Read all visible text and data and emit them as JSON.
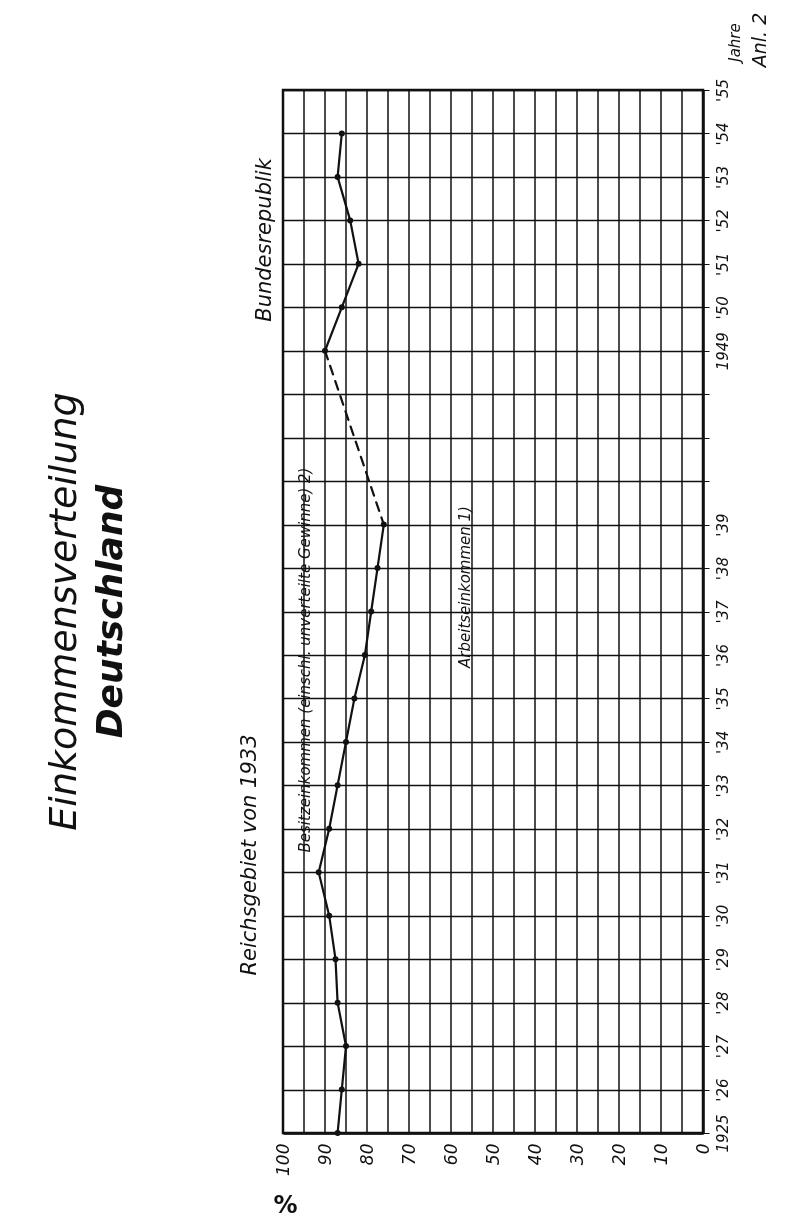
{
  "chart_data": {
    "type": "line",
    "orientation": "horizontal",
    "title": "Einkommensverteilung",
    "subtitle": "Deutschland",
    "xlabel": "%",
    "ylabel": "Jahre",
    "categories": [
      "'55",
      "'54",
      "'53",
      "'52",
      "'51",
      "'50",
      "1949",
      null,
      null,
      null,
      "'39",
      "'38",
      "'37",
      "'36",
      "'35",
      "'34",
      "'33",
      "'32",
      "'31",
      "'30",
      "'29",
      "'28",
      "'27",
      "'26",
      "1925"
    ],
    "series": [
      {
        "color": "#111111",
        "values": [
          null,
          86,
          87,
          84,
          82,
          86,
          90,
          null,
          null,
          null,
          76,
          77.5,
          79,
          80.5,
          83,
          85,
          87,
          89,
          91.5,
          89,
          87.5,
          87,
          85,
          86,
          87
        ]
      },
      {
        "color": "#111111",
        "line_style": "dashed",
        "marker": "none",
        "values": [
          null,
          null,
          null,
          null,
          null,
          null,
          90,
          null,
          null,
          null,
          76,
          null,
          null,
          null,
          null,
          null,
          null,
          null,
          null,
          null,
          null,
          null,
          null,
          null,
          null
        ]
      }
    ],
    "xlim": [
      100,
      0
    ],
    "xticks": [
      100,
      {
        "value": 95,
        "label": null
      },
      90,
      {
        "value": 85,
        "label": null
      },
      80,
      {
        "value": 75,
        "label": null
      },
      70,
      {
        "value": 65,
        "label": null
      },
      60,
      {
        "value": 55,
        "label": null
      },
      50,
      {
        "value": 45,
        "label": null
      },
      40,
      {
        "value": 35,
        "label": null
      },
      30,
      {
        "value": 25,
        "label": null
      },
      20,
      {
        "value": 15,
        "label": null
      },
      10,
      {
        "value": 5,
        "label": null
      },
      0
    ],
    "grid": true,
    "marker": "circle",
    "line_style": "solid",
    "annotations": [
      "Reichsgebiet von 1933",
      "Bundesrepublik",
      "Besitzeinkommen (einschl. unverteilte Gewinne) 2)",
      "Arbeitseinkommen 1)",
      "Anl. 2"
    ]
  }
}
